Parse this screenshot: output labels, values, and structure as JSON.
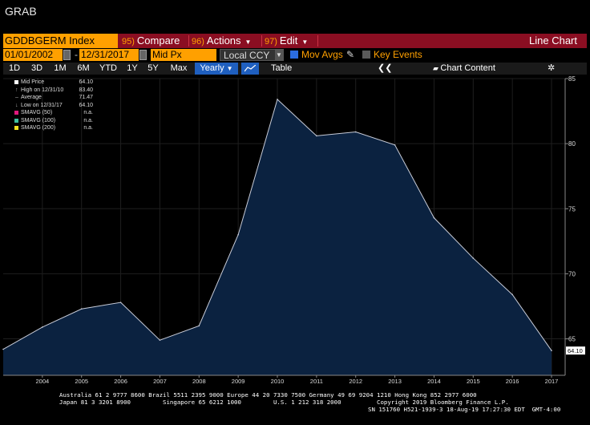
{
  "window": {
    "title": "GRAB"
  },
  "toolbar": {
    "ticker": "GDDBGERM Index",
    "compare": {
      "num": "95)",
      "label": "Compare"
    },
    "actions": {
      "num": "96)",
      "label": "Actions"
    },
    "edit": {
      "num": "97)",
      "label": "Edit"
    },
    "chart_type": "Line Chart"
  },
  "range": {
    "start": "01/01/2002",
    "end": "12/31/2017",
    "field": "Mid Px",
    "currency": "Local CCY",
    "mov_avgs_label": "Mov Avgs",
    "key_events_label": "Key Events"
  },
  "periods": [
    "1D",
    "3D",
    "1M",
    "6M",
    "YTD",
    "1Y",
    "5Y",
    "Max"
  ],
  "frequency": "Yearly",
  "table_label": "Table",
  "chart_content_arrows": "❮❮",
  "chart_content_label": "Chart Content",
  "legend": [
    {
      "label": "Mid Price",
      "value": "64.10",
      "color": "#ffffff"
    },
    {
      "label": "High on 12/31/10",
      "value": "83.40",
      "color": ""
    },
    {
      "label": "Average",
      "value": "71.47",
      "color": ""
    },
    {
      "label": "Low on 12/31/17",
      "value": "64.10",
      "color": ""
    },
    {
      "label": "SMAVG (50)",
      "value": "n.a.",
      "color": "#e0197d"
    },
    {
      "label": "SMAVG (100)",
      "value": "n.a.",
      "color": "#3fbfa0"
    },
    {
      "label": "SMAVG (200)",
      "value": "n.a.",
      "color": "#f0e020"
    }
  ],
  "chart_data": {
    "type": "area",
    "x": [
      2003,
      2004,
      2005,
      2006,
      2007,
      2008,
      2009,
      2010,
      2011,
      2012,
      2013,
      2014,
      2015,
      2016,
      2017
    ],
    "values": [
      64.2,
      65.9,
      67.3,
      67.8,
      64.9,
      66.0,
      73.0,
      83.4,
      80.6,
      80.9,
      79.9,
      74.3,
      71.2,
      68.4,
      64.1
    ],
    "ylim": [
      62.2,
      85.0
    ],
    "yticks": [
      65,
      70,
      75,
      80,
      85
    ],
    "xtick_labels": [
      "2004",
      "2005",
      "2006",
      "2007",
      "2008",
      "2009",
      "2010",
      "2011",
      "2012",
      "2013",
      "2014",
      "2015",
      "2016",
      "2017"
    ],
    "last_value_label": "64.10",
    "colors": {
      "fill": "#0b2240",
      "line": "#c8ccd8",
      "background": "#000000"
    }
  },
  "footer": {
    "line1": "Australia 61 2 9777 8600 Brazil 5511 2395 9000 Europe 44 20 7330 7500 Germany 49 69 9204 1210 Hong Kong 852 2977 6000",
    "line2": "Japan 81 3 3201 8900         Singapore 65 6212 1000         U.S. 1 212 318 2000          Copyright 2019 Bloomberg Finance L.P.",
    "line3": "SN 151760 H521-1939-3 18-Aug-19 17:27:30 EDT  GMT-4:00"
  }
}
